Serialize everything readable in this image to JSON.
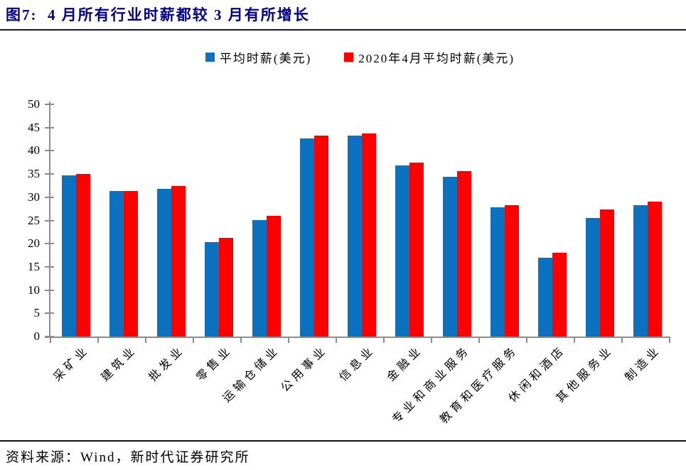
{
  "title": "图7:  4 月所有行业时薪都较 3 月有所增长",
  "colors": {
    "series_blue": "#0C72C0",
    "series_red": "#FF0000",
    "title_text": "#00008B",
    "axis_line": "#8C8C8C",
    "text": "#000000"
  },
  "legend": [
    {
      "label": "平均时薪(美元)",
      "color": "#0C72C0"
    },
    {
      "label": "2020年4月平均时薪(美元)",
      "color": "#FF0000"
    }
  ],
  "chart_data": {
    "type": "bar",
    "title": "图7: 4月所有行业时薪都较3月有所增长",
    "categories": [
      "采矿业",
      "建筑业",
      "批发业",
      "零售业",
      "运输仓储业",
      "公用事业",
      "信息业",
      "金融业",
      "专业和商业服务",
      "教育和医疗服务",
      "休闲和酒店",
      "其他服务业",
      "制造业"
    ],
    "series": [
      {
        "name": "平均时薪(美元)",
        "color": "#0C72C0",
        "values": [
          34.7,
          31.3,
          31.8,
          20.3,
          25.1,
          42.6,
          43.3,
          36.8,
          34.4,
          27.9,
          16.9,
          25.6,
          28.3
        ]
      },
      {
        "name": "2020年4月平均时薪(美元)",
        "color": "#FF0000",
        "values": [
          35.0,
          31.4,
          32.4,
          21.2,
          26.0,
          43.3,
          43.8,
          37.4,
          35.6,
          28.3,
          18.1,
          27.3,
          29.1
        ]
      }
    ],
    "xlabel": "",
    "ylabel": "",
    "ylim": [
      0,
      50
    ],
    "y_ticks": [
      0,
      5,
      10,
      15,
      20,
      25,
      30,
      35,
      40,
      45,
      50
    ],
    "grid": false,
    "legend_position": "top-center"
  },
  "footer": {
    "source_label": "资料来源：",
    "source_text": "Wind，新时代证券研究所"
  }
}
